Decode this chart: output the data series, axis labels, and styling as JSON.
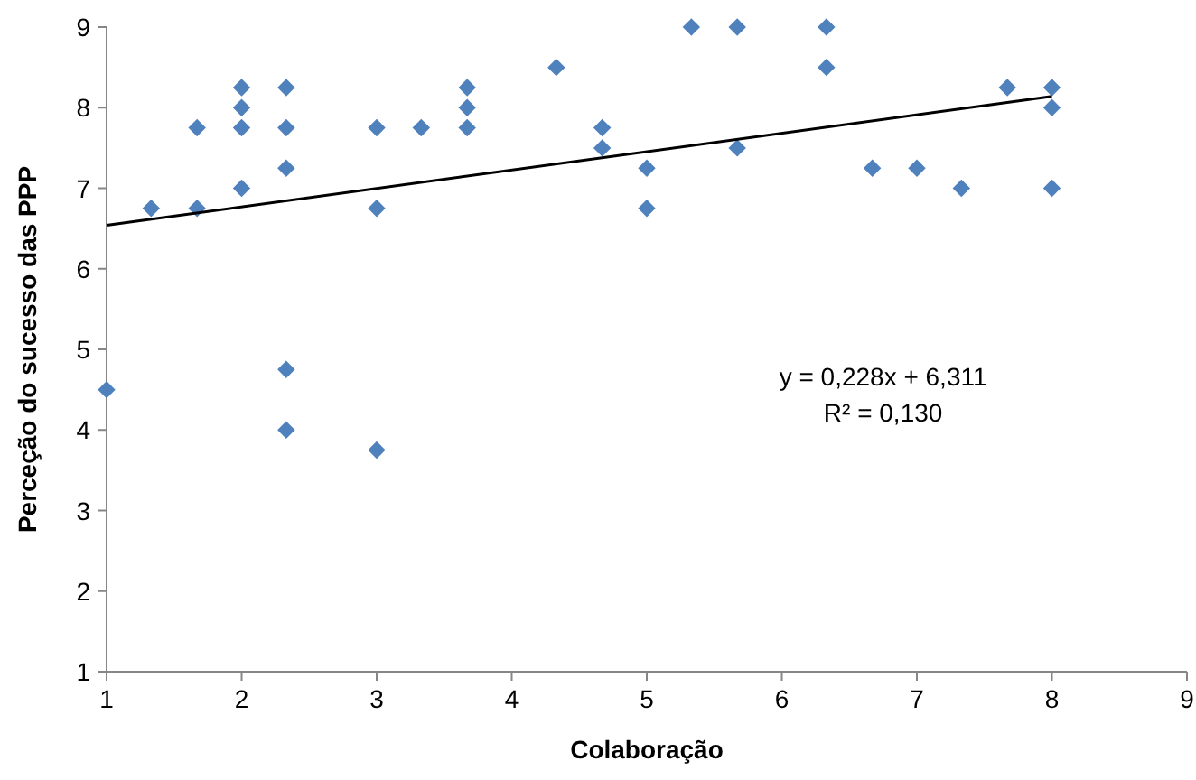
{
  "chart_data": {
    "type": "scatter",
    "xlabel": "Colaboração",
    "ylabel": "Perceção do sucesso das PPP",
    "xlim": [
      1,
      9
    ],
    "xticks": [
      1,
      2,
      3,
      4,
      5,
      6,
      7,
      8,
      9
    ],
    "ylim": [
      1,
      9
    ],
    "yticks": [
      1,
      2,
      3,
      4,
      5,
      6,
      7,
      8,
      9
    ],
    "grid": false,
    "marker": "diamond",
    "annotations": [
      "y = 0,228x + 6,311",
      "R² = 0,130"
    ],
    "series": [
      {
        "color": "#4f81bd",
        "x": [
          1,
          1.33,
          1.67,
          1.67,
          2,
          2,
          2,
          2,
          2.33,
          2.33,
          2.33,
          2.33,
          2.33,
          3,
          3,
          3,
          3.33,
          3.67,
          3.67,
          3.67,
          4.33,
          4.67,
          4.67,
          5,
          5,
          5.33,
          5.67,
          5.67,
          6.33,
          6.33,
          6.67,
          7,
          7.33,
          7.67,
          8,
          8,
          8
        ],
        "values": [
          4.5,
          6.75,
          7.75,
          6.75,
          8.25,
          8,
          7.75,
          7,
          8.25,
          7.75,
          7.25,
          4.75,
          4,
          7.75,
          6.75,
          3.75,
          7.75,
          8.25,
          8,
          7.75,
          8.5,
          7.75,
          7.5,
          7.25,
          6.75,
          9,
          9,
          7.5,
          9,
          8.5,
          7.25,
          7.25,
          7,
          8.25,
          8.25,
          8,
          7
        ]
      },
      {
        "type": "line",
        "color": "#000000",
        "marker": "none",
        "line_style": "solid",
        "x": [
          1,
          8
        ],
        "values": [
          6.54,
          8.14
        ]
      }
    ]
  }
}
